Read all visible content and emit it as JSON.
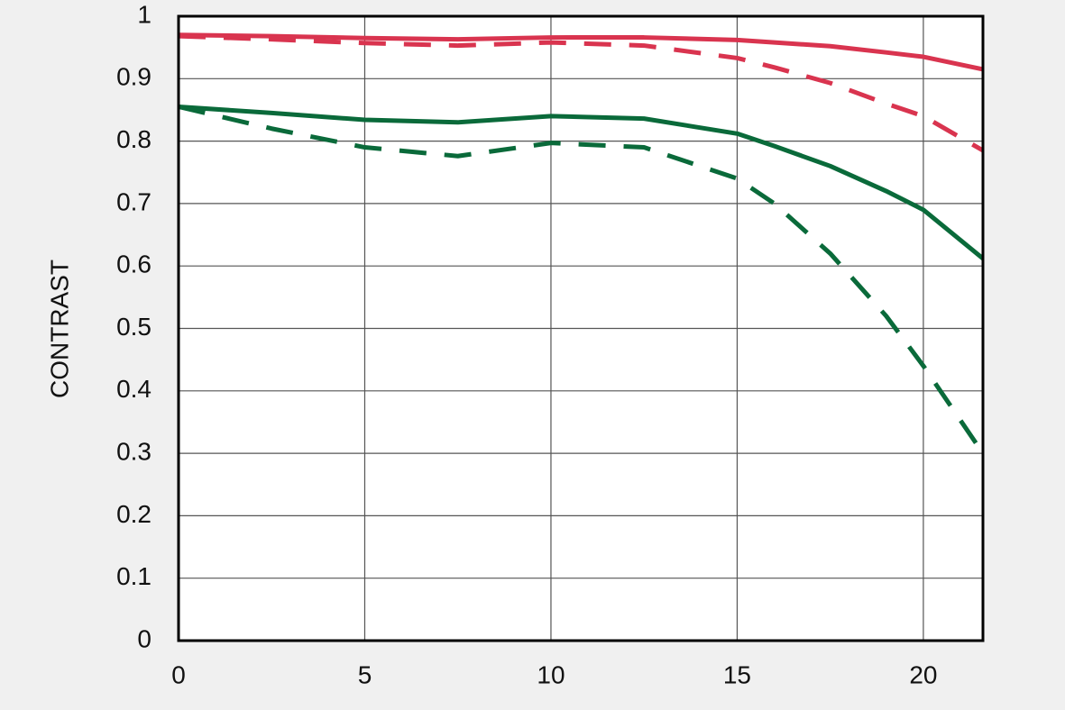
{
  "chart_data": {
    "type": "line",
    "y_label": "CONTRAST",
    "x": [
      0,
      2.5,
      5,
      7.5,
      10,
      12.5,
      15,
      16,
      17.5,
      19,
      20,
      21.6
    ],
    "series": [
      {
        "color": "#d9344f",
        "dashed": false,
        "values": [
          0.97,
          0.968,
          0.965,
          0.963,
          0.966,
          0.966,
          0.962,
          0.958,
          0.952,
          0.942,
          0.935,
          0.915
        ]
      },
      {
        "color": "#d9344f",
        "dashed": true,
        "values": [
          0.968,
          0.963,
          0.957,
          0.953,
          0.958,
          0.953,
          0.933,
          0.918,
          0.893,
          0.86,
          0.84,
          0.785
        ]
      },
      {
        "color": "#0a6a3a",
        "dashed": false,
        "values": [
          0.855,
          0.845,
          0.834,
          0.83,
          0.84,
          0.836,
          0.812,
          0.792,
          0.76,
          0.72,
          0.69,
          0.612
        ]
      },
      {
        "color": "#0a6a3a",
        "dashed": true,
        "values": [
          0.855,
          0.82,
          0.79,
          0.776,
          0.797,
          0.79,
          0.74,
          0.7,
          0.62,
          0.52,
          0.44,
          0.3
        ]
      }
    ],
    "xlim": [
      0,
      21.6
    ],
    "ylim": [
      0,
      1
    ],
    "xticks": [
      0,
      5,
      10,
      15,
      20
    ],
    "yticks": [
      0,
      0.1,
      0.2,
      0.3,
      0.4,
      0.5,
      0.6,
      0.7,
      0.8,
      0.9,
      1
    ],
    "grid": true
  }
}
